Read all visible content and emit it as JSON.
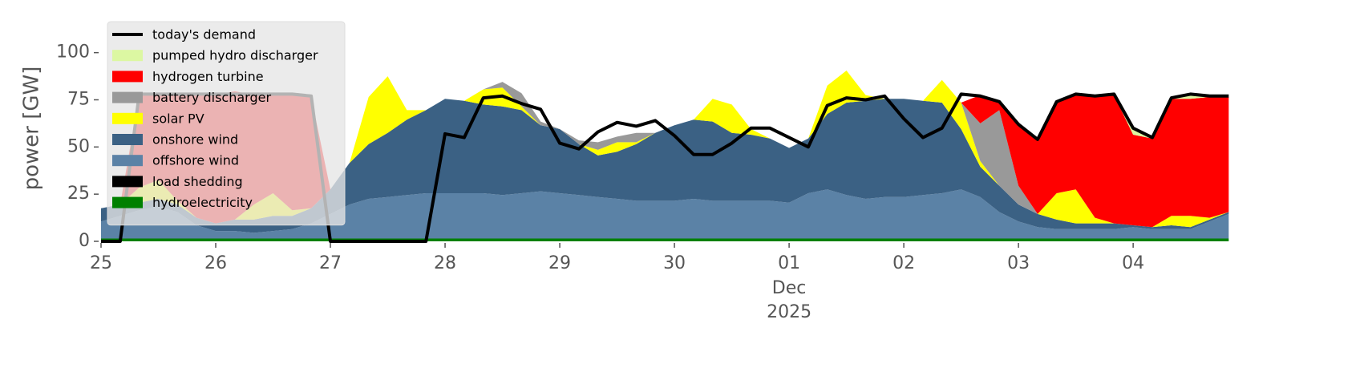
{
  "chart_data": {
    "type": "stacked_area",
    "ylabel": "power [GW]",
    "xlim": [
      0,
      9.95
    ],
    "ylim": [
      0,
      116
    ],
    "yticks": [
      0,
      25,
      50,
      75,
      100
    ],
    "xticks": [
      {
        "value": 0,
        "label": "25"
      },
      {
        "value": 1,
        "label": "26"
      },
      {
        "value": 2,
        "label": "27"
      },
      {
        "value": 3,
        "label": "28"
      },
      {
        "value": 4,
        "label": "29"
      },
      {
        "value": 5,
        "label": "30"
      },
      {
        "value": 6,
        "label": "01"
      },
      {
        "value": 7,
        "label": "02"
      },
      {
        "value": 8,
        "label": "03"
      },
      {
        "value": 9,
        "label": "04"
      }
    ],
    "x_month": "Dec",
    "x_year": "2025",
    "legend": "upper left",
    "x": [
      0,
      0.167,
      0.333,
      0.5,
      0.667,
      0.833,
      1,
      1.167,
      1.333,
      1.5,
      1.667,
      1.833,
      2,
      2.167,
      2.333,
      2.5,
      2.667,
      2.833,
      3,
      3.167,
      3.333,
      3.5,
      3.667,
      3.833,
      4,
      4.167,
      4.333,
      4.5,
      4.667,
      4.833,
      5,
      5.167,
      5.333,
      5.5,
      5.667,
      5.833,
      6,
      6.167,
      6.333,
      6.5,
      6.667,
      6.833,
      7,
      7.167,
      7.333,
      7.5,
      7.667,
      7.833,
      8,
      8.167,
      8.333,
      8.5,
      8.667,
      8.833,
      9,
      9.167,
      9.333,
      9.5,
      9.667,
      9.833
    ],
    "series": [
      {
        "name": "today's demand",
        "kind": "line",
        "color": "#000000",
        "values": [
          0,
          0,
          78,
          78,
          78,
          78,
          78,
          78,
          78,
          78,
          78,
          77,
          0,
          0,
          0,
          0,
          0,
          0,
          57,
          55,
          76,
          77,
          73,
          70,
          52,
          49,
          58,
          63,
          61,
          64,
          56,
          46,
          46,
          52,
          60,
          60,
          55,
          50,
          72,
          76,
          75,
          77,
          65,
          55,
          60,
          78,
          77,
          74,
          62,
          54,
          74,
          78,
          77,
          78,
          60,
          55,
          76,
          78,
          77,
          77
        ]
      },
      {
        "name": "pumped hydro discharger",
        "kind": "area",
        "color": "#dcf7a2",
        "values": [
          0,
          0,
          0,
          0,
          0,
          0,
          0,
          0,
          0,
          0,
          0,
          0,
          0,
          0,
          0,
          0,
          0,
          0,
          0,
          0,
          0,
          0,
          0,
          0,
          0,
          0,
          0,
          0,
          0,
          0,
          0,
          0,
          0,
          0,
          0,
          0,
          0,
          0,
          0,
          0,
          0,
          0,
          0,
          0,
          0,
          0,
          0,
          0,
          0,
          0,
          0,
          0,
          0,
          0,
          3,
          0,
          0,
          2,
          0,
          0
        ]
      },
      {
        "name": "hydrogen turbine",
        "kind": "area",
        "color": "#ff0000",
        "values": [
          0,
          0,
          49,
          45,
          56,
          65,
          68,
          68,
          58,
          52,
          61,
          59,
          0,
          0,
          0,
          0,
          0,
          0,
          0,
          0,
          0,
          0,
          0,
          0,
          0,
          0,
          0,
          0,
          0,
          0,
          0,
          0,
          0,
          0,
          0,
          0,
          0,
          0,
          0,
          0,
          0,
          0,
          0,
          0,
          0,
          0,
          15,
          4,
          32,
          40,
          48,
          50,
          64,
          68,
          48,
          47,
          62,
          62,
          64,
          61
        ]
      },
      {
        "name": "battery discharger",
        "kind": "area",
        "color": "#999999",
        "values": [
          0,
          0,
          0,
          0,
          0,
          0,
          0,
          0,
          0,
          0,
          0,
          0,
          0,
          0,
          0,
          0,
          0,
          0,
          0,
          0,
          0,
          3,
          7,
          2,
          0,
          2,
          4,
          3,
          5,
          0,
          0,
          0,
          0,
          0,
          0,
          0,
          0,
          0,
          0,
          0,
          0,
          0,
          0,
          0,
          0,
          0,
          20,
          40,
          10,
          0,
          0,
          0,
          0,
          0,
          0,
          0,
          0,
          0,
          0,
          0
        ]
      },
      {
        "name": "solar PV",
        "kind": "area",
        "color": "#ffff00",
        "values": [
          0,
          0,
          8,
          10,
          2,
          0,
          0,
          0,
          8,
          12,
          3,
          0,
          0,
          0,
          25,
          30,
          5,
          0,
          0,
          0,
          8,
          10,
          2,
          0,
          0,
          0,
          3,
          5,
          1,
          0,
          0,
          0,
          12,
          15,
          3,
          0,
          0,
          0,
          15,
          17,
          3,
          0,
          0,
          0,
          12,
          14,
          3,
          0,
          0,
          0,
          14,
          18,
          3,
          0,
          0,
          0,
          5,
          6,
          1,
          0
        ]
      },
      {
        "name": "onshore wind",
        "kind": "area",
        "color": "#3b6184",
        "values": [
          7,
          6,
          4,
          4,
          4,
          4,
          4,
          6,
          7,
          8,
          7,
          8,
          13,
          22,
          29,
          34,
          40,
          44,
          50,
          49,
          47,
          47,
          44,
          35,
          34,
          27,
          22,
          25,
          30,
          36,
          40,
          42,
          42,
          36,
          35,
          33,
          29,
          29,
          40,
          49,
          52,
          52,
          52,
          50,
          48,
          32,
          16,
          14,
          9,
          7,
          5,
          3,
          3,
          3,
          1,
          1,
          2,
          1,
          1,
          1
        ]
      },
      {
        "name": "offshore wind",
        "kind": "area",
        "color": "#5b82a6",
        "values": [
          9,
          12,
          15,
          17,
          14,
          7,
          4,
          4,
          3,
          4,
          5,
          8,
          13,
          18,
          21,
          22,
          23,
          24,
          24,
          24,
          24,
          23,
          24,
          25,
          24,
          23,
          22,
          21,
          20,
          20,
          20,
          21,
          20,
          20,
          20,
          20,
          19,
          24,
          26,
          23,
          21,
          22,
          22,
          23,
          24,
          26,
          22,
          14,
          9,
          6,
          5,
          5,
          5,
          5,
          6,
          5,
          5,
          5,
          9,
          13
        ]
      },
      {
        "name": "load shedding",
        "kind": "area",
        "color": "#000000",
        "values": [
          0,
          0,
          0,
          0,
          0,
          0,
          0,
          0,
          0,
          0,
          0,
          0,
          0,
          0,
          0,
          0,
          0,
          0,
          0,
          0,
          0,
          0,
          0,
          0,
          0,
          0,
          0,
          0,
          0,
          0,
          0,
          0,
          0,
          0,
          0,
          0,
          0,
          0,
          0,
          0,
          0,
          0,
          0,
          0,
          0,
          0,
          0,
          0,
          0,
          0,
          0,
          0,
          0,
          0,
          0,
          0,
          0,
          0,
          0,
          0
        ]
      },
      {
        "name": "hydroelectricity",
        "kind": "area",
        "color": "#008000",
        "values": [
          1.5,
          1.5,
          1.5,
          1.5,
          1.5,
          1.5,
          1.5,
          1.5,
          1.5,
          1.5,
          1.5,
          1.5,
          1.5,
          1.5,
          1.5,
          1.5,
          1.5,
          1.5,
          1.5,
          1.5,
          1.5,
          1.5,
          1.5,
          1.5,
          1.5,
          1.5,
          1.5,
          1.5,
          1.5,
          1.5,
          1.5,
          1.5,
          1.5,
          1.5,
          1.5,
          1.5,
          1.5,
          1.5,
          1.5,
          1.5,
          1.5,
          1.5,
          1.5,
          1.5,
          1.5,
          1.5,
          1.5,
          1.5,
          1.5,
          1.5,
          1.5,
          1.5,
          1.5,
          1.5,
          1.5,
          1.5,
          1.5,
          1.5,
          1.5,
          1.5
        ]
      }
    ]
  }
}
